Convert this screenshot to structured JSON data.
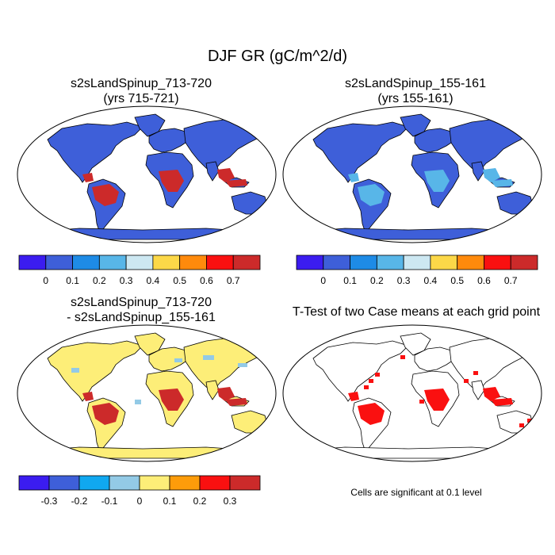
{
  "title": "DJF GR (gC/m^2/d)",
  "panels": [
    {
      "id": "p1",
      "title_line1": "s2sLandSpinup_713-720",
      "title_line2": "(yrs 715-721)",
      "map_style": "case_high"
    },
    {
      "id": "p2",
      "title_line1": "s2sLandSpinup_155-161",
      "title_line2": "(yrs 155-161)",
      "map_style": "case_low"
    },
    {
      "id": "p3",
      "title_line1": "s2sLandSpinup_713-720",
      "title_line2": "- s2sLandSpinup_155-161",
      "map_style": "diff"
    },
    {
      "id": "p4",
      "title_line1": "T-Test of two Case means at each grid point",
      "title_line2": "",
      "map_style": "ttest"
    }
  ],
  "note": "Cells are significant at 0.1 level",
  "chart_data": [
    {
      "type": "heatmap",
      "name": "case_colorbar",
      "colors": [
        "#3b1cf0",
        "#3e5fd9",
        "#1e8be6",
        "#58b6e8",
        "#cde8f2",
        "#fcd848",
        "#ff8a0c",
        "#fa1010",
        "#cc2a2a"
      ],
      "labels": [
        "0",
        "0.1",
        "0.2",
        "0.3",
        "0.4",
        "0.5",
        "0.6",
        "0.7"
      ]
    },
    {
      "type": "heatmap",
      "name": "diff_colorbar",
      "colors": [
        "#3b1cf0",
        "#3e5fd9",
        "#10a8f0",
        "#93cae6",
        "#fdee78",
        "#fd9c0a",
        "#fa1010",
        "#cc2a2a"
      ],
      "labels": [
        "-0.3",
        "-0.2",
        "-0.1",
        "0",
        "0.1",
        "0.2",
        "0.3"
      ]
    }
  ],
  "map_colors": {
    "ocean": "#ffffff",
    "coast": "#000000",
    "base_low": "#3e5fd9",
    "mid": "#58b6e8",
    "high": "#cc2a2a",
    "red": "#fa1010",
    "diff_base": "#fdee78",
    "diff_light_blue": "#93cae6"
  }
}
